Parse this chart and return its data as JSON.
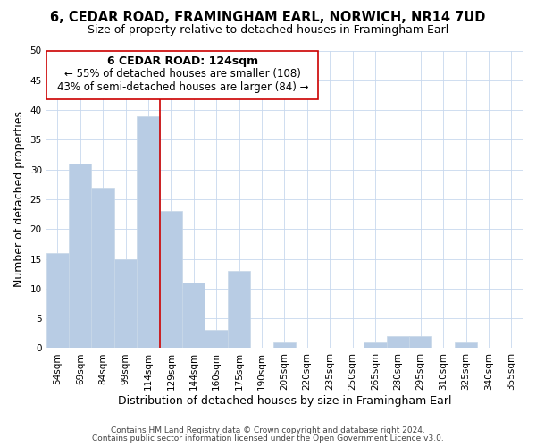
{
  "title": "6, CEDAR ROAD, FRAMINGHAM EARL, NORWICH, NR14 7UD",
  "subtitle": "Size of property relative to detached houses in Framingham Earl",
  "xlabel": "Distribution of detached houses by size in Framingham Earl",
  "ylabel": "Number of detached properties",
  "footer_line1": "Contains HM Land Registry data © Crown copyright and database right 2024.",
  "footer_line2": "Contains public sector information licensed under the Open Government Licence v3.0.",
  "categories": [
    "54sqm",
    "69sqm",
    "84sqm",
    "99sqm",
    "114sqm",
    "129sqm",
    "144sqm",
    "160sqm",
    "175sqm",
    "190sqm",
    "205sqm",
    "220sqm",
    "235sqm",
    "250sqm",
    "265sqm",
    "280sqm",
    "295sqm",
    "310sqm",
    "325sqm",
    "340sqm",
    "355sqm"
  ],
  "values": [
    16,
    31,
    27,
    15,
    39,
    23,
    11,
    3,
    13,
    0,
    1,
    0,
    0,
    0,
    1,
    2,
    2,
    0,
    1,
    0,
    0
  ],
  "bar_color": "#b8cce4",
  "bar_edge_color": "#c8d8e8",
  "vline_x": 4.5,
  "vline_color": "#cc0000",
  "annotation_title": "6 CEDAR ROAD: 124sqm",
  "annotation_line1": "← 55% of detached houses are smaller (108)",
  "annotation_line2": "43% of semi-detached houses are larger (84) →",
  "annotation_box_edge": "#cc0000",
  "ylim": [
    0,
    50
  ],
  "background_color": "#ffffff",
  "grid_color": "#c8d8ee",
  "title_fontsize": 10.5,
  "subtitle_fontsize": 9,
  "axis_label_fontsize": 9,
  "tick_fontsize": 7.5,
  "annotation_title_fontsize": 9,
  "annotation_text_fontsize": 8.5,
  "footer_fontsize": 6.5
}
